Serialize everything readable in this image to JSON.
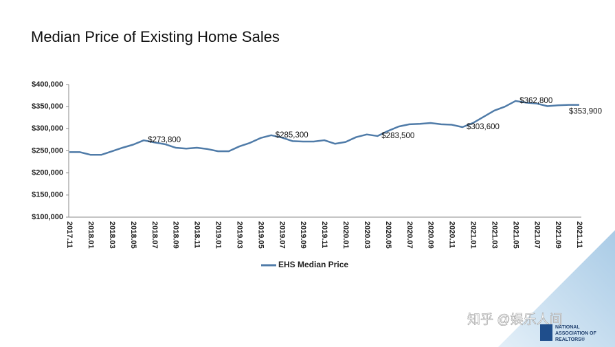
{
  "chart_data": {
    "type": "line",
    "title": "Median Price of Existing Home Sales",
    "categories": [
      "2017.11",
      null,
      "2018.01",
      null,
      "2018.03",
      null,
      "2018.05",
      null,
      "2018.07",
      null,
      "2018.09",
      null,
      "2018.11",
      null,
      "2019.01",
      null,
      "2019.03",
      null,
      "2019.05",
      null,
      "2019.07",
      null,
      "2019.09",
      null,
      "2019.11",
      null,
      "2020.01",
      null,
      "2020.03",
      null,
      "2020.05",
      null,
      "2020.07",
      null,
      "2020.09",
      null,
      "2020.11",
      null,
      "2021.01",
      null,
      "2021.03",
      null,
      "2021.05",
      null,
      "2021.07",
      null,
      "2021.09",
      null,
      "2021.11"
    ],
    "series": [
      {
        "name": "EHS Median Price",
        "color": "#4f7ba8",
        "values": [
          247000,
          247000,
          241000,
          241000,
          249000,
          257000,
          264000,
          273800,
          269000,
          265000,
          257000,
          255000,
          257000,
          254000,
          249000,
          249000,
          260000,
          268000,
          279000,
          285300,
          280000,
          272000,
          271000,
          271000,
          274000,
          266000,
          270000,
          281000,
          287000,
          283500,
          295000,
          305000,
          310000,
          311000,
          313000,
          310000,
          309000,
          303600,
          313000,
          327000,
          341000,
          350000,
          362800,
          359000,
          357000,
          351000,
          353000,
          353900,
          353900
        ],
        "value_labels": [
          null,
          null,
          null,
          null,
          null,
          null,
          null,
          "$273,800",
          null,
          null,
          null,
          null,
          null,
          null,
          null,
          null,
          null,
          null,
          null,
          "$285,300",
          null,
          null,
          null,
          null,
          null,
          null,
          null,
          null,
          null,
          "$283,500",
          null,
          null,
          null,
          null,
          null,
          null,
          null,
          "$303,600",
          null,
          null,
          null,
          null,
          "$362,800",
          null,
          null,
          null,
          null,
          null,
          "$353,900"
        ]
      }
    ],
    "ylim": [
      100000,
      400000
    ],
    "yticks": [
      {
        "value": 100000,
        "label": "$100,000"
      },
      {
        "value": 150000,
        "label": "$150,000"
      },
      {
        "value": 200000,
        "label": "$200,000"
      },
      {
        "value": 250000,
        "label": "$250,000"
      },
      {
        "value": 300000,
        "label": "$300,000"
      },
      {
        "value": 350000,
        "label": "$350,000"
      },
      {
        "value": 400000,
        "label": "$400,000"
      }
    ],
    "legend": "bottom",
    "grid": false
  },
  "watermark": "知乎 @娱乐人间",
  "logo": [
    "NATIONAL",
    "ASSOCIATION OF",
    "REALTORS®"
  ]
}
